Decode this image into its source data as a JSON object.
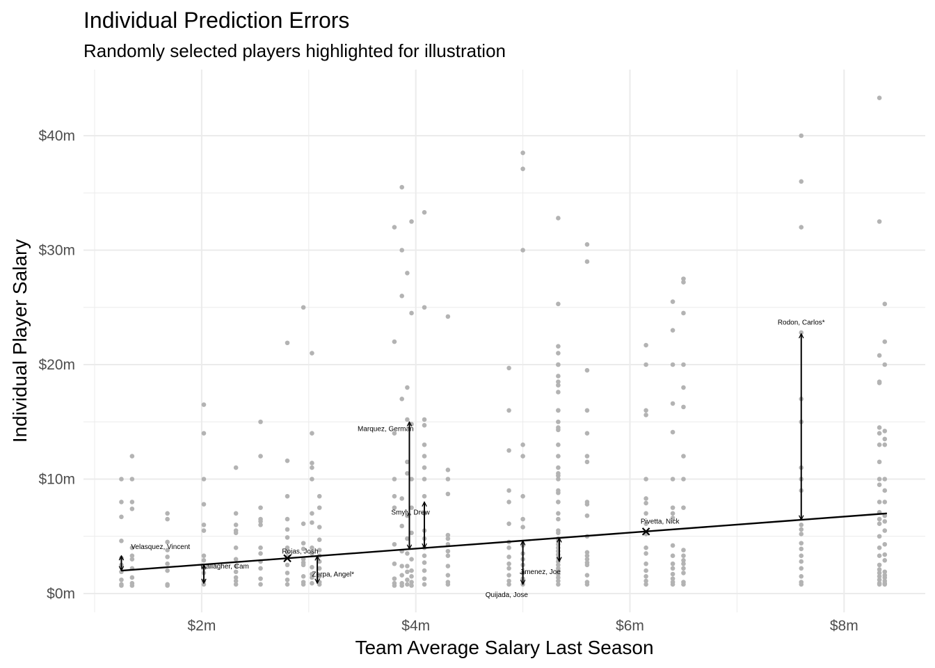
{
  "chart_data": {
    "type": "scatter",
    "title": "Individual Prediction Errors",
    "subtitle": "Randomly selected players highlighted for illustration",
    "xlabel": "Team Average Salary Last Season",
    "ylabel": "Individual Player Salary",
    "x_unit": "$m",
    "y_unit": "$m",
    "xlim": [
      1.0,
      8.75
    ],
    "ylim": [
      -1.5,
      45.5
    ],
    "x_ticks": [
      2,
      4,
      6,
      8
    ],
    "x_tick_labels": [
      "$2m",
      "$4m",
      "$6m",
      "$8m"
    ],
    "y_ticks": [
      0,
      10,
      20,
      30,
      40
    ],
    "y_tick_labels": [
      "$0m",
      "$10m",
      "$20m",
      "$30m",
      "$40m"
    ],
    "grid": true,
    "colors": {
      "points": "#b3b3b3",
      "line": "#000000",
      "arrows": "#000000",
      "grid": "#ebebeb"
    },
    "regression_line": {
      "x": [
        1.25,
        8.4
      ],
      "y": [
        2.0,
        7.0
      ]
    },
    "teams": [
      {
        "x": 1.25,
        "y": [
          10,
          8,
          6.7,
          4.6,
          3.1,
          2.5,
          1.9,
          1.2,
          0.8,
          0.7
        ]
      },
      {
        "x": 1.35,
        "y": [
          12,
          10,
          8,
          7.4,
          4,
          3.3,
          3,
          2.2,
          1.4,
          0.9,
          0.7
        ]
      },
      {
        "x": 1.68,
        "y": [
          7,
          6.5,
          4.5,
          3.8,
          3.2,
          2.6,
          2.0,
          0.8,
          0.7
        ]
      },
      {
        "x": 2.02,
        "y": [
          16.5,
          14,
          10,
          7.8,
          6,
          5.5,
          3.3,
          2.9,
          2.2,
          1.8,
          1.1,
          0.8
        ]
      },
      {
        "x": 2.32,
        "y": [
          11,
          7,
          6,
          5.5,
          5.3,
          4.0,
          3.0,
          2.4,
          1.9,
          1.4,
          1.1,
          0.8
        ]
      },
      {
        "x": 2.55,
        "y": [
          15,
          12,
          7.5,
          6.5,
          6.3,
          6,
          4,
          3.5,
          2.8,
          2.2,
          1.3,
          0.8
        ]
      },
      {
        "x": 2.8,
        "y": [
          21.9,
          11.6,
          8.5,
          6.5,
          5.6,
          4.9,
          4.0,
          3.6,
          3.2,
          2.5,
          1.8,
          1.2,
          0.8
        ]
      },
      {
        "x": 2.95,
        "y": [
          25,
          6.1,
          4.4,
          3.9,
          3,
          2.7,
          2.5,
          1.5,
          1.0,
          0.8
        ]
      },
      {
        "x": 3.03,
        "y": [
          21,
          14,
          11.4,
          11,
          10,
          7,
          6.2,
          4,
          3.5,
          2.3,
          1.7,
          1.4,
          0.9
        ]
      },
      {
        "x": 3.1,
        "y": [
          8.5,
          7.5,
          5.8,
          4.7,
          3.8,
          3.3,
          2.8,
          2.2,
          1.5,
          1.0,
          0.8
        ]
      },
      {
        "x": 3.8,
        "y": [
          32,
          22,
          14,
          10,
          8.5,
          7.5,
          4.3,
          2.6,
          1.3,
          0.9,
          0.7
        ]
      },
      {
        "x": 3.87,
        "y": [
          35.5,
          30,
          26,
          17,
          8.3,
          5.9,
          3.7,
          2.4,
          1.6,
          0.9,
          0.7
        ]
      },
      {
        "x": 3.92,
        "y": [
          28,
          18,
          15.2,
          11.5,
          10.5,
          6.8,
          4.8,
          3.5,
          2.4,
          1.9,
          1.2,
          0.8
        ]
      },
      {
        "x": 3.96,
        "y": [
          32.5,
          24.5,
          14.8,
          10,
          7.5,
          5.3,
          3.0,
          2.0,
          1.5,
          1.0,
          0.7
        ]
      },
      {
        "x": 4.08,
        "y": [
          33.3,
          25,
          15.2,
          14.7,
          13,
          12,
          11,
          10,
          8.5,
          7,
          5.5,
          4.8,
          4.0,
          3.3,
          2.7,
          2.0,
          1.3,
          0.8
        ]
      },
      {
        "x": 4.3,
        "y": [
          24.2,
          10.8,
          10,
          8.7,
          5.1,
          4.8,
          4.3,
          3.7,
          3.3,
          2.4,
          1.6,
          1.0,
          0.8
        ]
      },
      {
        "x": 4.87,
        "y": [
          19.7,
          16,
          12.5,
          9,
          8,
          6.1,
          4.5,
          4.0,
          3.2,
          2.6,
          2.2,
          1.6,
          1.1,
          0.8
        ]
      },
      {
        "x": 5.0,
        "y": [
          38.5,
          37.1,
          30,
          13,
          12,
          8.5,
          6.5,
          5.8,
          4.2,
          3.5,
          3.0,
          2.5,
          1.8,
          1.3,
          0.8
        ]
      },
      {
        "x": 5.33,
        "y": [
          32.8,
          25.3,
          21.6,
          21,
          20,
          20,
          19,
          18.5,
          18.2,
          17.6,
          16,
          16,
          15,
          14.5,
          14.3,
          13,
          12,
          11,
          10.5,
          10.3,
          10,
          9,
          8.8,
          8,
          8,
          7,
          6.5,
          5.5,
          5.3,
          4.8,
          4.6,
          4.3,
          4,
          3.7,
          3.4,
          3.1,
          2.8,
          2.5,
          2.2,
          2,
          1.7,
          1.4,
          1.1,
          0.8
        ]
      },
      {
        "x": 5.6,
        "y": [
          30.5,
          29,
          19.5,
          16,
          14,
          12,
          11.5,
          8,
          7.8,
          6.8,
          5,
          3.6,
          3.3,
          3.0,
          2.7,
          2.5,
          1.6,
          1.0,
          0.8
        ]
      },
      {
        "x": 6.15,
        "y": [
          21.7,
          20,
          16,
          15.6,
          10,
          8.3,
          7.9,
          7,
          6.1,
          5.2,
          4.0,
          3.5,
          2.6,
          2.0,
          1.5,
          1.1,
          0.8
        ]
      },
      {
        "x": 6.4,
        "y": [
          25.5,
          23,
          20,
          16.6,
          14.1,
          10,
          7.5,
          7.0,
          6.6,
          4.2,
          3.3,
          2.6,
          2.2,
          1.7,
          1.3,
          1.0,
          0.8
        ]
      },
      {
        "x": 6.5,
        "y": [
          27.5,
          27.2,
          24.5,
          20,
          18,
          16.3,
          12,
          10,
          7.5,
          3.8,
          3.3,
          2.9,
          2.6,
          2.2,
          1.8,
          1.0,
          0.8
        ]
      },
      {
        "x": 7.6,
        "y": [
          40,
          36,
          32,
          22.8,
          17,
          15,
          11,
          10,
          9,
          6,
          5.6,
          5.2,
          4.4,
          3.9,
          3.3,
          2.8,
          2.2,
          1.5,
          1.0,
          0.8
        ]
      },
      {
        "x": 8.33,
        "y": [
          43.3,
          32.5,
          20.8,
          18.5,
          18.4,
          14.5,
          14,
          13,
          11.5,
          10,
          9.5,
          8,
          7.1,
          6.5,
          6.1,
          5,
          4,
          3.3,
          2.5,
          2.1,
          1.8,
          1.5,
          1.2,
          0.9,
          0.8
        ]
      },
      {
        "x": 8.38,
        "y": [
          25.3,
          22,
          20,
          14.2,
          13.5,
          13,
          10,
          9,
          8,
          6.8,
          6.3,
          5.5,
          4.3,
          3.4,
          2.9,
          1.9,
          1.6,
          1.4,
          1.1,
          0.9,
          0.8
        ]
      }
    ],
    "highlighted": [
      {
        "label": "Velasquez, Vincent",
        "x": 1.25,
        "y": 3.3,
        "fitted": 2.0,
        "label_x": 1.34,
        "label_y": 3.9,
        "label_anchor": "start"
      },
      {
        "label": "Gallagher, Cam",
        "x": 2.02,
        "y": 0.9,
        "fitted": 2.54,
        "label_x": 1.99,
        "label_y": 2.2,
        "label_anchor": "start"
      },
      {
        "label": "Rojas, Josh",
        "x": 2.8,
        "y": 3.1,
        "fitted": 3.08,
        "label_x": 2.75,
        "label_y": 3.5,
        "label_anchor": "start"
      },
      {
        "label": "Zerpa, Angel*",
        "x": 3.08,
        "y": 0.9,
        "fitted": 3.28,
        "label_x": 3.03,
        "label_y": 1.5,
        "label_anchor": "start"
      },
      {
        "label": "Marquez, German",
        "x": 3.94,
        "y": 15.0,
        "fitted": 3.88,
        "label_x": 3.98,
        "label_y": 14.2,
        "label_anchor": "end"
      },
      {
        "label": "Smyly, Drew",
        "x": 4.08,
        "y": 8.0,
        "fitted": 3.98,
        "label_x": 4.13,
        "label_y": 6.9,
        "label_anchor": "end"
      },
      {
        "label": "Quijada, Jose",
        "x": 5.0,
        "y": 0.8,
        "fitted": 4.62,
        "label_x": 4.65,
        "label_y": -0.3,
        "label_anchor": "start"
      },
      {
        "label": "Jimenez, Joe",
        "x": 5.34,
        "y": 2.8,
        "fitted": 4.86,
        "label_x": 4.97,
        "label_y": 1.7,
        "label_anchor": "start"
      },
      {
        "label": "Pivetta, Nick",
        "x": 6.15,
        "y": 5.42,
        "fitted": 5.42,
        "label_x": 6.1,
        "label_y": 6.1,
        "label_anchor": "start"
      },
      {
        "label": "Rodon, Carlos*",
        "x": 7.6,
        "y": 22.7,
        "fitted": 6.44,
        "label_x": 7.6,
        "label_y": 23.5,
        "label_anchor": "middle"
      }
    ]
  }
}
